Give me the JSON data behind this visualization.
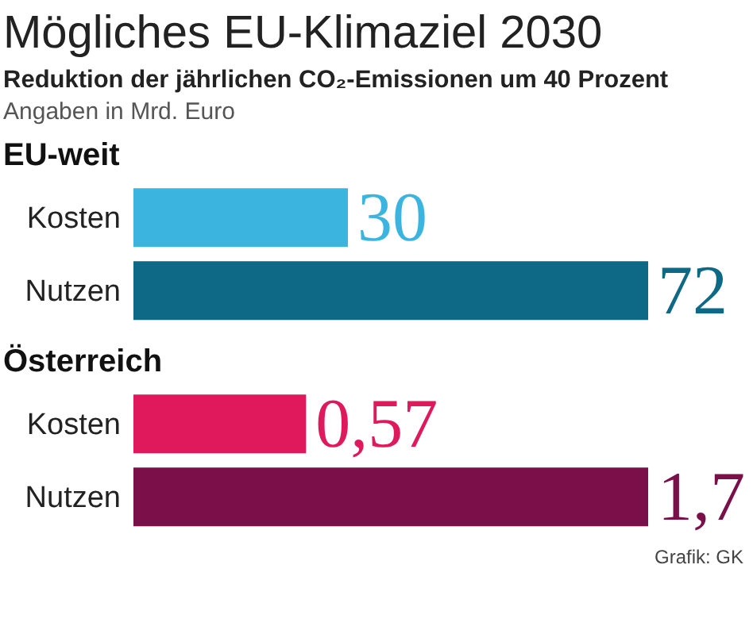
{
  "chart_data": [
    {
      "type": "other",
      "title": "Mögliches EU-Klimaziel 2030",
      "subtitle": "Reduktion der jährlichen CO₂-Emissionen um 40 Prozent",
      "annotations": [
        "Angaben in Mrd. Euro"
      ]
    },
    {
      "type": "bar",
      "orientation": "horizontal",
      "title": "EU-weit",
      "categories": [
        "Kosten",
        "Nutzen"
      ],
      "values": [
        30,
        72
      ],
      "value_labels": [
        "30",
        "72"
      ],
      "colors": [
        "#3cb4e0",
        "#0e6987"
      ]
    },
    {
      "type": "bar",
      "orientation": "horizontal",
      "title": "Österreich",
      "categories": [
        "Kosten",
        "Nutzen"
      ],
      "values": [
        0.57,
        1.7
      ],
      "value_labels": [
        "0,57",
        "1,7"
      ],
      "colors": [
        "#df195c",
        "#7b0f4a"
      ],
      "annotations": [
        "Grafik: GK"
      ]
    }
  ]
}
